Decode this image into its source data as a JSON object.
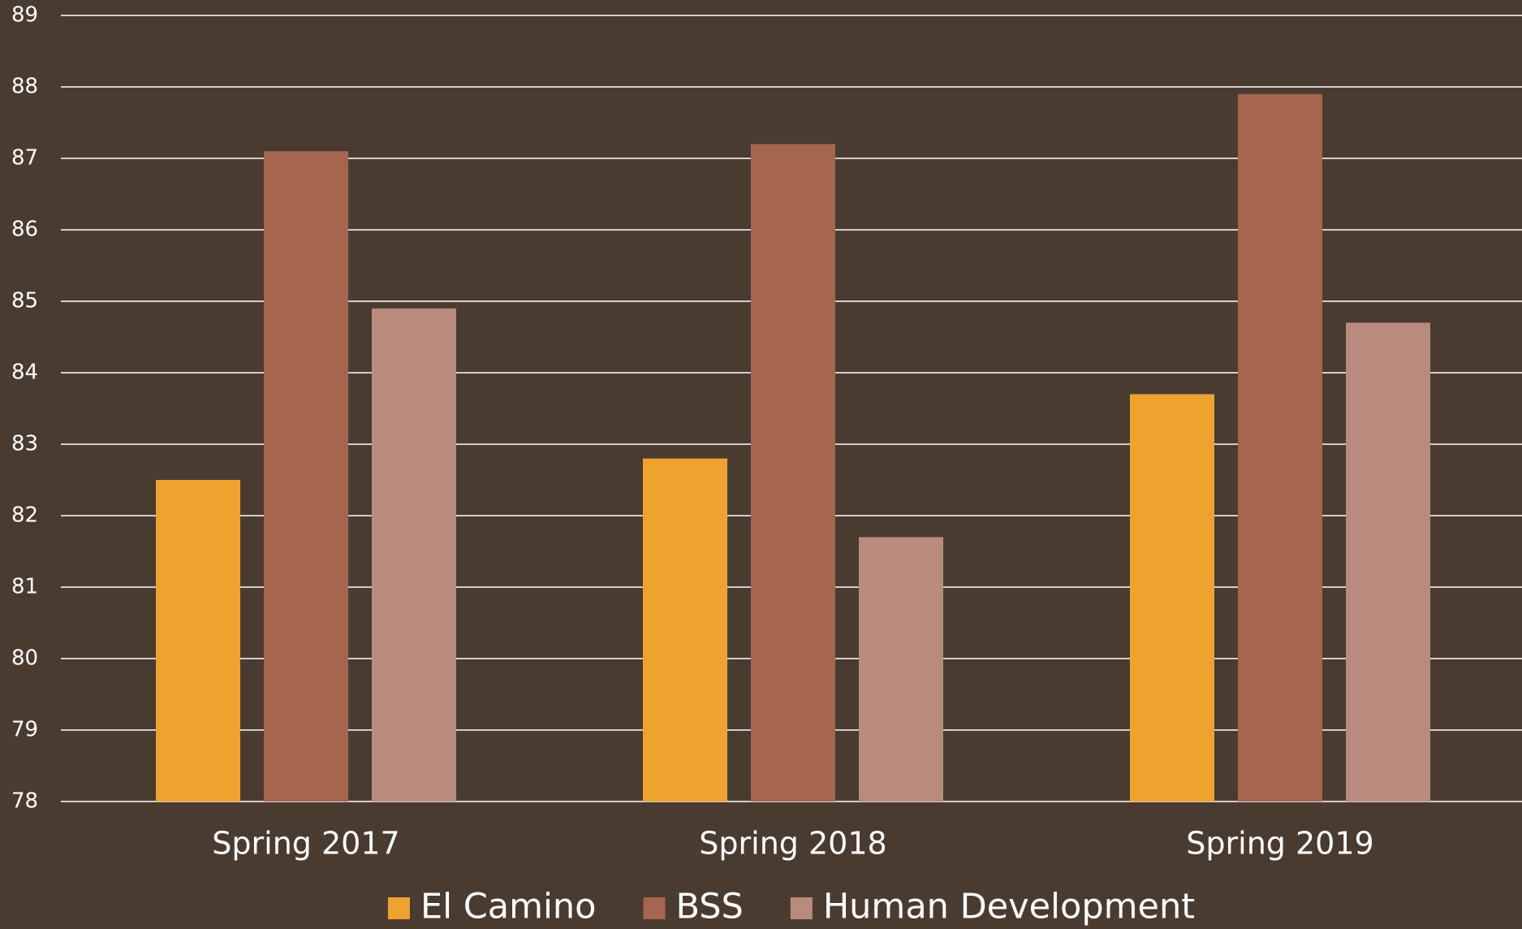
{
  "chart_data": {
    "type": "bar",
    "categories": [
      "Spring 2017",
      "Spring 2018",
      "Spring 2019"
    ],
    "series": [
      {
        "name": "El Camino",
        "color": "#eea330",
        "values": [
          82.5,
          82.8,
          83.7
        ]
      },
      {
        "name": "BSS",
        "color": "#a5654e",
        "values": [
          87.1,
          87.2,
          87.9
        ]
      },
      {
        "name": "Human Development",
        "color": "#b88b7e",
        "values": [
          84.9,
          81.7,
          84.7
        ]
      }
    ],
    "ylim": [
      78,
      89
    ],
    "yticks": [
      78,
      79,
      80,
      81,
      82,
      83,
      84,
      85,
      86,
      87,
      88,
      89
    ],
    "grid": true,
    "legend": "bottom"
  }
}
